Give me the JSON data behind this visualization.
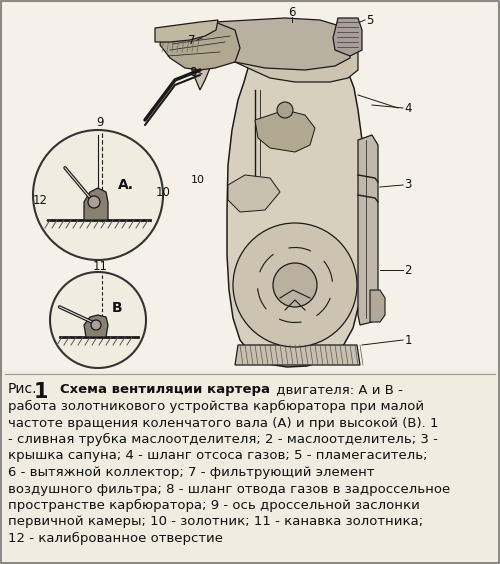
{
  "figsize": [
    5.0,
    5.64
  ],
  "dpi": 100,
  "bg_color": "#f0ece0",
  "text_color": "#111111",
  "line_color": "#1a1a1a",
  "caption_bold_part": "Схема вентиляции картера",
  "caption_normal_part": " двигателя: А и В -",
  "caption_lines": [
    "работа золотникового устройства карбюратора при малой",
    "частоте вращения коленчатого вала (А) и при высокой (В). 1",
    "- сливная трубка маслоотделителя; 2 - маслоотделитель; 3 -",
    "крышка сапуна; 4 - шланг отсоса газов; 5 - пламегаситель;",
    "6 - вытяжной коллектор; 7 - фильтрующий элемент",
    "воздушного фильтра; 8 - шланг отвода газов в задроссельное",
    "пространстве карбюратора; 9 - ось дроссельной заслонки",
    "первичной камеры; 10 - золотник; 11 - канавка золотника;",
    "12 - калиброванное отверстие"
  ],
  "diagram_bg": "#e8e2d0",
  "hatch_color": "#444444",
  "white_color": "#f8f4ec"
}
